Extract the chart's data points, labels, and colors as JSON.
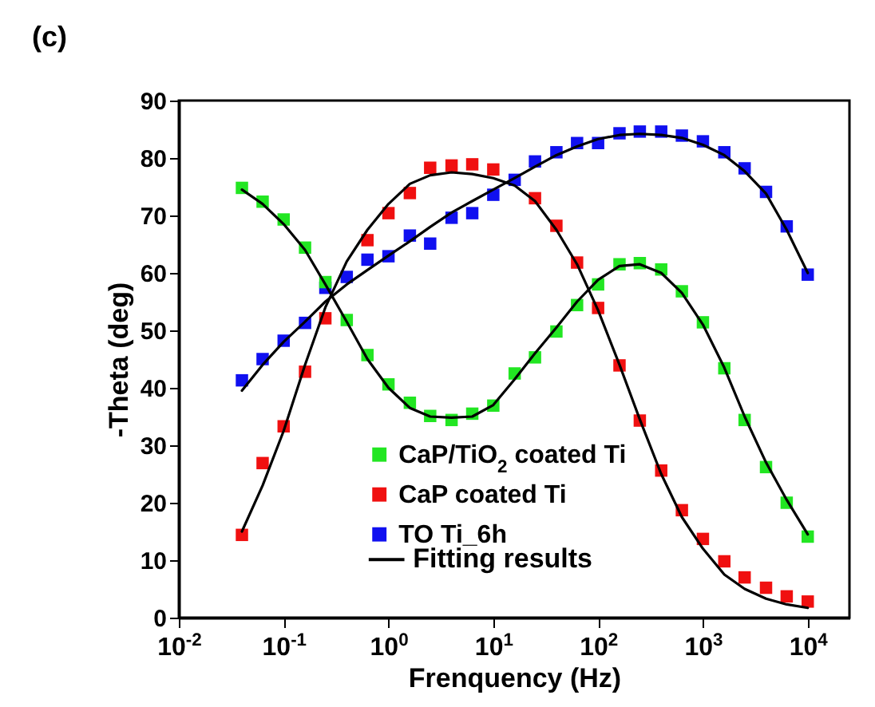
{
  "chart_data": {
    "type": "scatter",
    "title": "(c)",
    "xlabel": "Frenquency (Hz)",
    "ylabel": "-Theta (deg)",
    "log": "x",
    "marker": "square",
    "legend": "bottom",
    "grid": false,
    "x": [
      0.04,
      0.063,
      0.1,
      0.16,
      0.25,
      0.4,
      0.63,
      1,
      1.6,
      2.5,
      4,
      6.3,
      10,
      16,
      25,
      40,
      63,
      100,
      160,
      250,
      400,
      630,
      1000,
      1600,
      2500,
      4000,
      6300,
      10000
    ],
    "xlim": [
      0.01,
      25000
    ],
    "xticks": [
      {
        "value": 0.01,
        "label": "10$^{-2}$"
      },
      {
        "value": 0.1,
        "label": "10$^{-1}$"
      },
      {
        "value": 1,
        "label": "10$^{0}$"
      },
      {
        "value": 10,
        "label": "10$^{1}$"
      },
      {
        "value": 100,
        "label": "10$^{2}$"
      },
      {
        "value": 1000,
        "label": "10$^{3}$"
      },
      {
        "value": 10000,
        "label": "10$^{4}$"
      }
    ],
    "ylim": [
      0,
      90
    ],
    "yticks": [
      0,
      10,
      20,
      30,
      40,
      50,
      60,
      70,
      80,
      90
    ],
    "series": [
      {
        "name": "CaP/TiO$_{2}$ coated Ti",
        "color": "#22e622",
        "values": [
          74.8,
          72.4,
          69.3,
          64.4,
          58.4,
          51.8,
          45.7,
          40.6,
          37.4,
          35.1,
          34.4,
          35.5,
          36.9,
          42.5,
          45.3,
          49.8,
          54.4,
          58,
          61.5,
          61.7,
          60.6,
          56.8,
          51.4,
          43.4,
          34.4,
          26.2,
          20,
          14.1
        ]
      },
      {
        "name": "CaP coated Ti",
        "color": "#f01010",
        "values": [
          14.4,
          26.9,
          33.3,
          42.8,
          52.1,
          null,
          65.7,
          70.4,
          73.9,
          78.3,
          78.7,
          78.9,
          78,
          null,
          73,
          68.2,
          61.8,
          53.9,
          43.9,
          34.3,
          25.6,
          18.7,
          13.7,
          9.8,
          7,
          5.2,
          3.7,
          2.8
        ]
      },
      {
        "name": "TO Ti_6h",
        "color": "#1010f0",
        "values": [
          41.3,
          45,
          48.2,
          51.3,
          57.4,
          59.3,
          62.3,
          62.9,
          66.5,
          65.1,
          69.6,
          70.4,
          73.6,
          76.2,
          79.4,
          81,
          82.6,
          82.6,
          84.3,
          84.6,
          84.6,
          83.9,
          82.9,
          81,
          78.2,
          74.1,
          68.1,
          59.7
        ]
      },
      {
        "name": "Fitting results",
        "type": "line",
        "color": "#000000",
        "marker": "none",
        "values": [
          74.5,
          72,
          68.5,
          64,
          58,
          51.5,
          45,
          40,
          36.5,
          35,
          34.8,
          35,
          37,
          41.5,
          46,
          50.5,
          55,
          58.8,
          61.2,
          61.5,
          60,
          56.5,
          51,
          43.5,
          35,
          27,
          20.5,
          14.5
        ]
      },
      {
        "type": "line",
        "color": "#000000",
        "marker": "none",
        "values": [
          15,
          23,
          32.5,
          44,
          54,
          62,
          67.5,
          72,
          75.5,
          77,
          77.5,
          77.2,
          76.5,
          75.2,
          72.5,
          67.5,
          61.5,
          53.5,
          44,
          34.5,
          25,
          17.5,
          12,
          7.5,
          5,
          3.3,
          2.3,
          1.7
        ]
      },
      {
        "type": "line",
        "color": "#000000",
        "marker": "none",
        "values": [
          39.5,
          44,
          48,
          51.5,
          55,
          58,
          60.5,
          63,
          65.5,
          68,
          70.5,
          72.5,
          74.5,
          76.5,
          78.5,
          80.5,
          82,
          83.3,
          84,
          84.2,
          84,
          83.5,
          82.3,
          80.5,
          77.7,
          73.8,
          67.5,
          60
        ]
      }
    ]
  }
}
